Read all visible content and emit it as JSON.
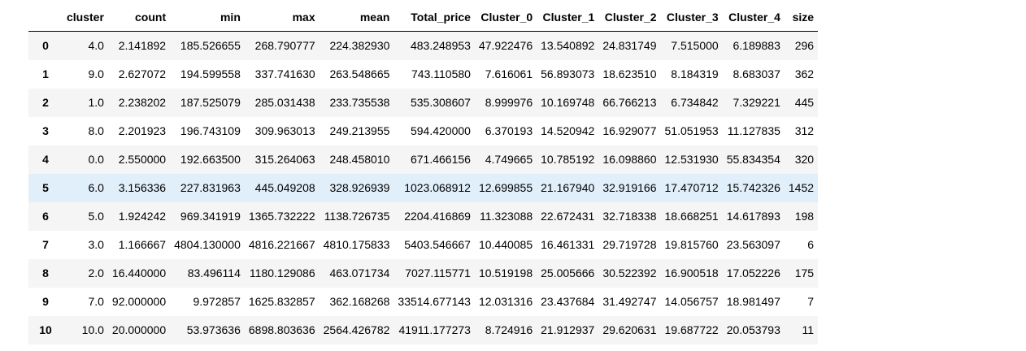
{
  "table": {
    "index_header": "",
    "columns": [
      "cluster",
      "count",
      "min",
      "max",
      "mean",
      "Total_price",
      "Cluster_0",
      "Cluster_1",
      "Cluster_2",
      "Cluster_3",
      "Cluster_4",
      "size"
    ],
    "highlighted_row": "5",
    "rows": [
      {
        "index": "0",
        "cells": [
          "4.0",
          "2.141892",
          "185.526655",
          "268.790777",
          "224.382930",
          "483.248953",
          "47.922476",
          "13.540892",
          "24.831749",
          "7.515000",
          "6.189883",
          "296"
        ]
      },
      {
        "index": "1",
        "cells": [
          "9.0",
          "2.627072",
          "194.599558",
          "337.741630",
          "263.548665",
          "743.110580",
          "7.616061",
          "56.893073",
          "18.623510",
          "8.184319",
          "8.683037",
          "362"
        ]
      },
      {
        "index": "2",
        "cells": [
          "1.0",
          "2.238202",
          "187.525079",
          "285.031438",
          "233.735538",
          "535.308607",
          "8.999976",
          "10.169748",
          "66.766213",
          "6.734842",
          "7.329221",
          "445"
        ]
      },
      {
        "index": "3",
        "cells": [
          "8.0",
          "2.201923",
          "196.743109",
          "309.963013",
          "249.213955",
          "594.420000",
          "6.370193",
          "14.520942",
          "16.929077",
          "51.051953",
          "11.127835",
          "312"
        ]
      },
      {
        "index": "4",
        "cells": [
          "0.0",
          "2.550000",
          "192.663500",
          "315.264063",
          "248.458010",
          "671.466156",
          "4.749665",
          "10.785192",
          "16.098860",
          "12.531930",
          "55.834354",
          "320"
        ]
      },
      {
        "index": "5",
        "cells": [
          "6.0",
          "3.156336",
          "227.831963",
          "445.049208",
          "328.926939",
          "1023.068912",
          "12.699855",
          "21.167940",
          "32.919166",
          "17.470712",
          "15.742326",
          "1452"
        ]
      },
      {
        "index": "6",
        "cells": [
          "5.0",
          "1.924242",
          "969.341919",
          "1365.732222",
          "1138.726735",
          "2204.416869",
          "11.323088",
          "22.672431",
          "32.718338",
          "18.668251",
          "14.617893",
          "198"
        ]
      },
      {
        "index": "7",
        "cells": [
          "3.0",
          "1.166667",
          "4804.130000",
          "4816.221667",
          "4810.175833",
          "5403.546667",
          "10.440085",
          "16.461331",
          "29.719728",
          "19.815760",
          "23.563097",
          "6"
        ]
      },
      {
        "index": "8",
        "cells": [
          "2.0",
          "16.440000",
          "83.496114",
          "1180.129086",
          "463.071734",
          "7027.115771",
          "10.519198",
          "25.005666",
          "30.522392",
          "16.900518",
          "17.052226",
          "175"
        ]
      },
      {
        "index": "9",
        "cells": [
          "7.0",
          "92.000000",
          "9.972857",
          "1625.832857",
          "362.168268",
          "33514.677143",
          "12.031316",
          "23.437684",
          "31.492747",
          "14.056757",
          "18.981497",
          "7"
        ]
      },
      {
        "index": "10",
        "cells": [
          "10.0",
          "20.000000",
          "53.973636",
          "6898.803636",
          "2564.426782",
          "41911.177273",
          "8.724916",
          "21.912937",
          "29.620631",
          "19.687722",
          "20.053793",
          "11"
        ]
      }
    ]
  }
}
